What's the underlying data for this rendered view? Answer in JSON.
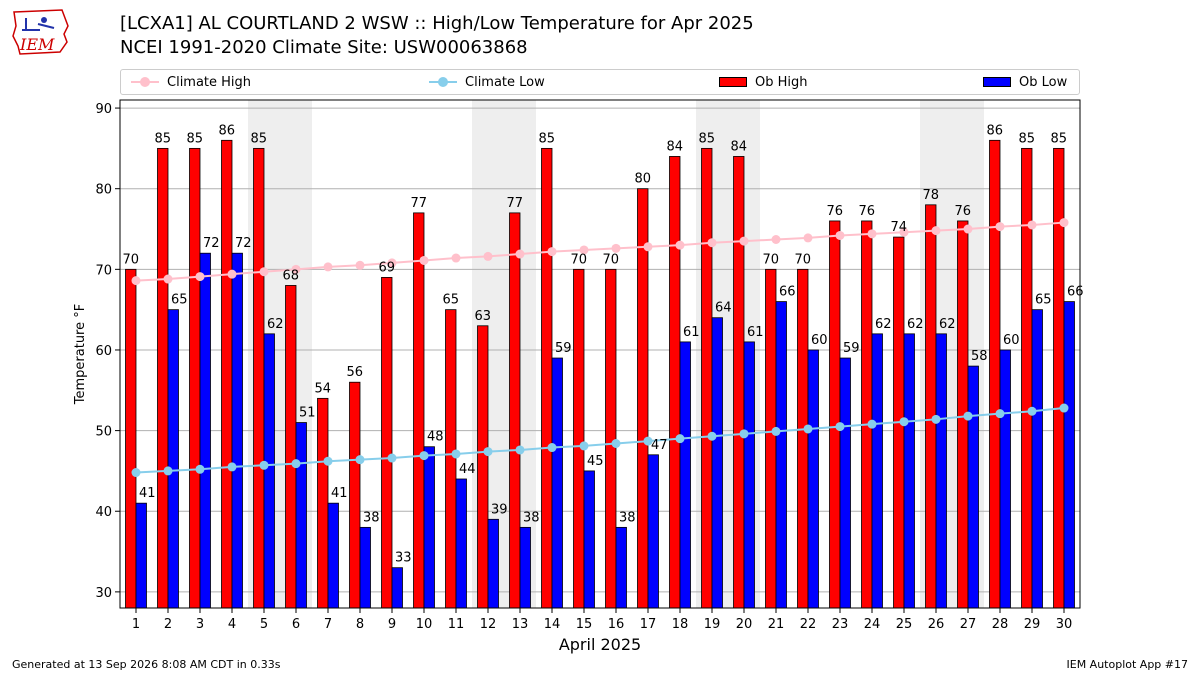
{
  "header": {
    "title_line1": "[LCXA1] AL COURTLAND 2 WSW :: High/Low Temperature for Apr 2025",
    "title_line2": "NCEI 1991-2020 Climate Site: USW00063868"
  },
  "logo": {
    "text": "IEM",
    "color": "#cc0000"
  },
  "legend": {
    "items": [
      {
        "label": "Climate High",
        "kind": "line",
        "color": "#ffc0cb"
      },
      {
        "label": "Climate Low",
        "kind": "line",
        "color": "#87ceeb"
      },
      {
        "label": "Ob High",
        "kind": "bar",
        "color": "#ff0000"
      },
      {
        "label": "Ob Low",
        "kind": "bar",
        "color": "#0000ff"
      }
    ]
  },
  "footer": {
    "left": "Generated at 13 Sep 2026 8:08 AM CDT in 0.33s",
    "right": "IEM Autoplot App #17"
  },
  "chart_data": {
    "type": "bar",
    "xlabel": "April 2025",
    "ylabel": "Temperature °F",
    "ylim": [
      28,
      91
    ],
    "yticks": [
      30,
      40,
      50,
      60,
      70,
      80,
      90
    ],
    "grid": true,
    "weekend_shading_days": [
      5,
      6,
      12,
      13,
      19,
      20,
      26,
      27
    ],
    "categories": [
      "1",
      "2",
      "3",
      "4",
      "5",
      "6",
      "7",
      "8",
      "9",
      "10",
      "11",
      "12",
      "13",
      "14",
      "15",
      "16",
      "17",
      "18",
      "19",
      "20",
      "21",
      "22",
      "23",
      "24",
      "25",
      "26",
      "27",
      "28",
      "29",
      "30"
    ],
    "series": [
      {
        "name": "Ob High",
        "kind": "bar",
        "color": "#ff0000",
        "values": [
          70,
          85,
          85,
          86,
          85,
          68,
          54,
          56,
          69,
          77,
          65,
          63,
          77,
          85,
          70,
          70,
          80,
          84,
          85,
          84,
          70,
          70,
          76,
          76,
          74,
          78,
          76,
          86,
          85,
          85
        ]
      },
      {
        "name": "Ob Low",
        "kind": "bar",
        "color": "#0000ff",
        "values": [
          41,
          65,
          72,
          72,
          62,
          51,
          41,
          38,
          33,
          48,
          44,
          39,
          38,
          59,
          45,
          38,
          47,
          61,
          64,
          61,
          66,
          60,
          59,
          62,
          62,
          62,
          58,
          60,
          65,
          66
        ]
      },
      {
        "name": "Climate High",
        "kind": "line",
        "color": "#ffc0cb",
        "values": [
          68.6,
          68.8,
          69.1,
          69.4,
          69.7,
          70.0,
          70.3,
          70.5,
          70.8,
          71.1,
          71.4,
          71.6,
          71.9,
          72.2,
          72.4,
          72.6,
          72.8,
          73.0,
          73.3,
          73.5,
          73.7,
          73.9,
          74.2,
          74.4,
          74.6,
          74.8,
          75.0,
          75.3,
          75.5,
          75.8
        ]
      },
      {
        "name": "Climate Low",
        "kind": "line",
        "color": "#87ceeb",
        "values": [
          44.8,
          45.0,
          45.2,
          45.5,
          45.7,
          45.9,
          46.2,
          46.4,
          46.6,
          46.9,
          47.1,
          47.4,
          47.6,
          47.9,
          48.1,
          48.4,
          48.7,
          49.0,
          49.3,
          49.6,
          49.9,
          50.2,
          50.5,
          50.8,
          51.1,
          51.4,
          51.8,
          52.1,
          52.4,
          52.8
        ]
      }
    ]
  }
}
